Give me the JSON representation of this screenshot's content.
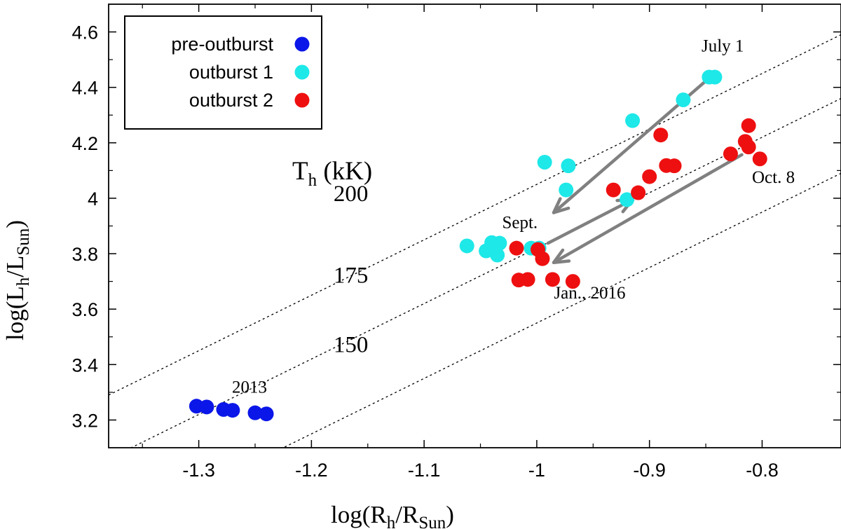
{
  "chart_data": {
    "type": "scatter",
    "xlabel": {
      "prefix": "log(R",
      "sub1": "h",
      "mid": "/R",
      "sub2": "Sun",
      "suffix": ")"
    },
    "ylabel": {
      "prefix": "log(L",
      "sub1": "h",
      "mid": "/L",
      "sub2": "Sun",
      "suffix": ")"
    },
    "xlim": [
      -1.38,
      -0.73
    ],
    "ylim": [
      3.1,
      4.7
    ],
    "xticks": [
      {
        "value": -1.3,
        "label": "-1.3"
      },
      {
        "value": -1.2,
        "label": "-1.2"
      },
      {
        "value": -1.1,
        "label": "-1.1"
      },
      {
        "value": -1.0,
        "label": "-1"
      },
      {
        "value": -0.9,
        "label": "-0.9"
      },
      {
        "value": -0.8,
        "label": "-0.8"
      }
    ],
    "yticks": [
      {
        "value": 3.2,
        "label": "3.2"
      },
      {
        "value": 3.4,
        "label": "3.4"
      },
      {
        "value": 3.6,
        "label": "3.6"
      },
      {
        "value": 3.8,
        "label": "3.8"
      },
      {
        "value": 4.0,
        "label": "4"
      },
      {
        "value": 4.2,
        "label": "4.2"
      },
      {
        "value": 4.4,
        "label": "4.4"
      },
      {
        "value": 4.6,
        "label": "4.6"
      }
    ],
    "series": [
      {
        "name": "pre-outburst",
        "color": "#0b17e8",
        "points": [
          [
            -1.302,
            3.25
          ],
          [
            -1.293,
            3.247
          ],
          [
            -1.278,
            3.238
          ],
          [
            -1.27,
            3.235
          ],
          [
            -1.25,
            3.226
          ],
          [
            -1.24,
            3.222
          ]
        ]
      },
      {
        "name": "outburst 1",
        "color": "#1ee8e8",
        "points": [
          [
            -0.847,
            4.437
          ],
          [
            -0.842,
            4.437
          ],
          [
            -0.87,
            4.355
          ],
          [
            -0.915,
            4.28
          ],
          [
            -0.993,
            4.13
          ],
          [
            -0.972,
            4.117
          ],
          [
            -0.974,
            4.03
          ],
          [
            -0.92,
            3.995
          ],
          [
            -1.062,
            3.828
          ],
          [
            -1.04,
            3.84
          ],
          [
            -1.033,
            3.838
          ],
          [
            -1.045,
            3.81
          ],
          [
            -1.035,
            3.795
          ],
          [
            -1.005,
            3.82
          ],
          [
            -0.998,
            3.82
          ]
        ]
      },
      {
        "name": "outburst 2",
        "color": "#ee1010",
        "points": [
          [
            -0.89,
            4.228
          ],
          [
            -0.812,
            4.262
          ],
          [
            -0.815,
            4.205
          ],
          [
            -0.812,
            4.185
          ],
          [
            -0.828,
            4.16
          ],
          [
            -0.802,
            4.142
          ],
          [
            -0.885,
            4.118
          ],
          [
            -0.878,
            4.117
          ],
          [
            -0.9,
            4.078
          ],
          [
            -0.91,
            4.02
          ],
          [
            -0.932,
            4.03
          ],
          [
            -1.018,
            3.82
          ],
          [
            -0.999,
            3.815
          ],
          [
            -0.995,
            3.782
          ],
          [
            -1.016,
            3.705
          ],
          [
            -1.008,
            3.707
          ],
          [
            -0.986,
            3.707
          ],
          [
            -0.968,
            3.7
          ]
        ]
      }
    ],
    "temperature_lines": [
      {
        "label": "200",
        "intercept": 6.05
      },
      {
        "label": "175",
        "intercept": 5.82
      },
      {
        "label": "150",
        "intercept": 5.55
      }
    ],
    "temperature_title": {
      "main": "T",
      "sub": "h",
      "rest": " (kK)"
    },
    "arrows": [
      {
        "from": [
          -0.848,
          4.43
        ],
        "to": [
          -0.985,
          3.948
        ]
      },
      {
        "from": [
          -0.99,
          3.838
        ],
        "to": [
          -0.915,
          3.995
        ]
      },
      {
        "from": [
          -0.818,
          4.157
        ],
        "to": [
          -0.985,
          3.768
        ]
      }
    ],
    "annotations": [
      {
        "text": "July 1",
        "x": -0.835,
        "y": 4.53
      },
      {
        "text": "Sept.",
        "x": -1.015,
        "y": 3.893
      },
      {
        "text": "Oct. 8",
        "x": -0.79,
        "y": 4.055
      },
      {
        "text": "Jan., 2016",
        "x": -0.953,
        "y": 3.638
      },
      {
        "text": "2013",
        "x": -1.255,
        "y": 3.298
      }
    ],
    "legend": {
      "position": "top-left"
    }
  }
}
